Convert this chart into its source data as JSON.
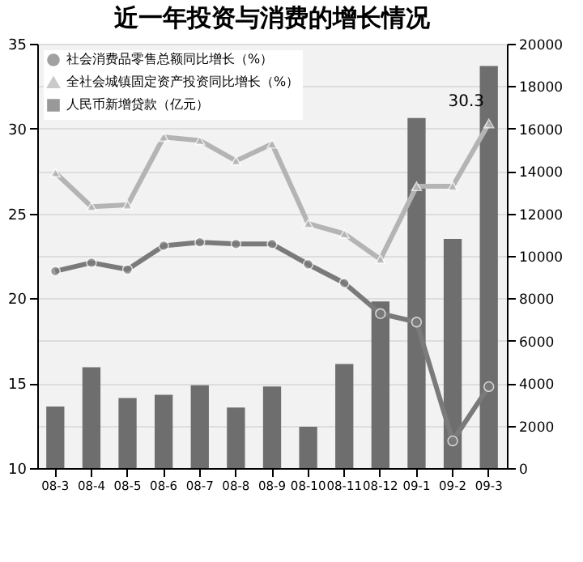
{
  "chart_data": {
    "type": "line",
    "title": "近一年投资与消费的增长情况",
    "categories": [
      "08-3",
      "08-4",
      "08-5",
      "08-6",
      "08-7",
      "08-8",
      "08-9",
      "08-10",
      "08-11",
      "08-12",
      "09-1",
      "09-2",
      "09-3"
    ],
    "series": [
      {
        "name": "社会消费品零售总额同比增长（%）",
        "marker": "circle",
        "color": "#7a7a7a",
        "values": [
          21.6,
          22.1,
          21.7,
          23.1,
          23.3,
          23.2,
          23.2,
          22.0,
          20.9,
          19.1,
          18.6,
          11.6,
          14.8
        ]
      },
      {
        "name": "全社会城镇固定资产投资同比增长（%）",
        "marker": "triangle",
        "color": "#b4b4b4",
        "values": [
          27.4,
          25.4,
          25.5,
          29.5,
          29.3,
          28.1,
          29.1,
          24.4,
          23.8,
          22.3,
          26.6,
          26.6,
          30.3
        ]
      },
      {
        "name": "人民币新增贷款（亿元）",
        "type": "bar",
        "axis": "y2",
        "color": "#6e6e6e",
        "values": [
          2900,
          4750,
          3300,
          3450,
          3900,
          2850,
          3850,
          1950,
          4900,
          7850,
          16500,
          10800,
          18950
        ]
      }
    ],
    "ylim": [
      10,
      35
    ],
    "yticks": [
      10,
      15,
      20,
      25,
      30,
      35
    ],
    "y2lim": [
      0,
      20000
    ],
    "y2ticks": [
      0,
      2000,
      4000,
      6000,
      8000,
      10000,
      12000,
      14000,
      16000,
      18000,
      20000
    ],
    "grid": true,
    "legend": "top left",
    "annotations": [
      {
        "text": "30.3",
        "x": "09-3",
        "y": 30.3
      }
    ]
  }
}
